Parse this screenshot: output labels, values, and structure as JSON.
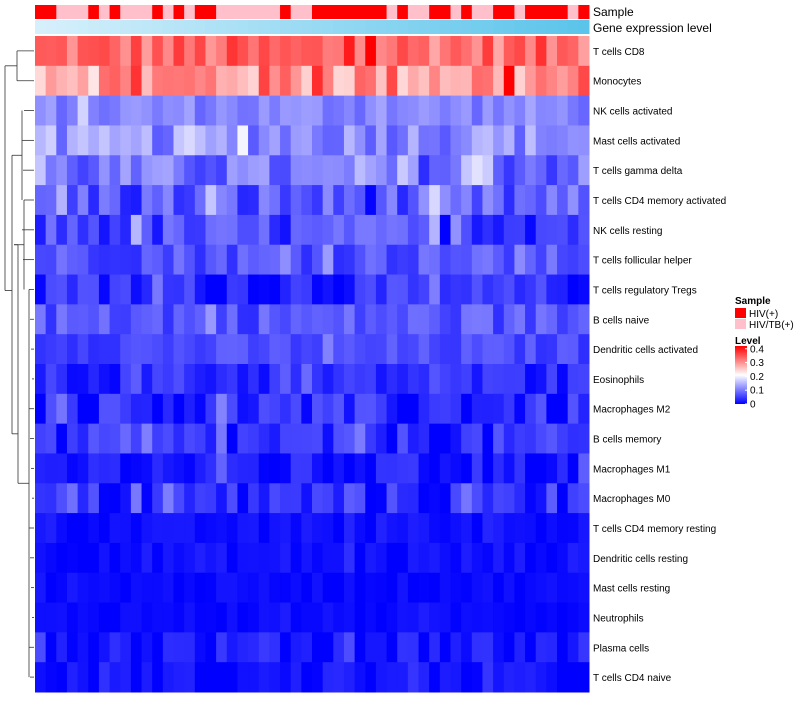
{
  "chart_data": {
    "type": "heatmap",
    "title": "",
    "annotation_tracks": [
      "Sample",
      "Gene expression level"
    ],
    "columns": 52,
    "rows": [
      "T cells CD8",
      "Monocytes",
      "NK cells activated",
      "Mast cells activated",
      "T cells gamma delta",
      "T cells CD4 memory activated",
      "NK cells resting",
      "T cells follicular helper",
      "T cells regulatory  Tregs",
      "B cells naive",
      "Dendritic cells activated",
      "Eosinophils",
      "Macrophages M2",
      "B cells memory",
      "Macrophages M1",
      "Macrophages M0",
      "T cells CD4 memory resting",
      "Dendritic cells resting",
      "Mast cells resting",
      "Neutrophils",
      "Plasma cells",
      "T cells CD4 naive"
    ],
    "sample_groups": "HHLLLHLHLLLHLHLHHLLLLLLHLLHHHHHHHLHLLHHLHLLHHLHHHHLH",
    "row_profiles": [
      {
        "mean": 0.33,
        "spread": 0.05
      },
      {
        "mean": 0.3,
        "spread": 0.07
      },
      {
        "mean": 0.09,
        "spread": 0.03
      },
      {
        "mean": 0.1,
        "spread": 0.05
      },
      {
        "mean": 0.07,
        "spread": 0.05
      },
      {
        "mean": 0.05,
        "spread": 0.05
      },
      {
        "mean": 0.04,
        "spread": 0.04
      },
      {
        "mean": 0.05,
        "spread": 0.03
      },
      {
        "mean": 0.02,
        "spread": 0.03
      },
      {
        "mean": 0.05,
        "spread": 0.03
      },
      {
        "mean": 0.04,
        "spread": 0.02
      },
      {
        "mean": 0.02,
        "spread": 0.02
      },
      {
        "mean": 0.02,
        "spread": 0.03
      },
      {
        "mean": 0.02,
        "spread": 0.03
      },
      {
        "mean": 0.01,
        "spread": 0.02
      },
      {
        "mean": 0.02,
        "spread": 0.03
      },
      {
        "mean": 0.004,
        "spread": 0.006
      },
      {
        "mean": 0.005,
        "spread": 0.008
      },
      {
        "mean": 0.003,
        "spread": 0.004
      },
      {
        "mean": 0.003,
        "spread": 0.004
      },
      {
        "mean": 0.01,
        "spread": 0.02
      },
      {
        "mean": 0.005,
        "spread": 0.01
      }
    ],
    "legend": {
      "sample_title": "Sample",
      "sample_entries": [
        {
          "label": "HIV(+)",
          "color": "#ff0000"
        },
        {
          "label": "HIV/TB(+)",
          "color": "#ffc0cb"
        }
      ],
      "level_title": "Level",
      "level_ticks": [
        "0.4",
        "0.3",
        "0.2",
        "0.1",
        "0"
      ],
      "level_values": [
        0.4,
        0.3,
        0.2,
        0.1,
        0
      ],
      "level_range": [
        0,
        0.42
      ]
    },
    "colors": {
      "low": "#0000ff",
      "mid": "#ffffff",
      "high": "#ff0000",
      "expression_track_start": "#d6f0fb",
      "expression_track_end": "#5bc4ea",
      "dendrogram": "#333333"
    }
  }
}
